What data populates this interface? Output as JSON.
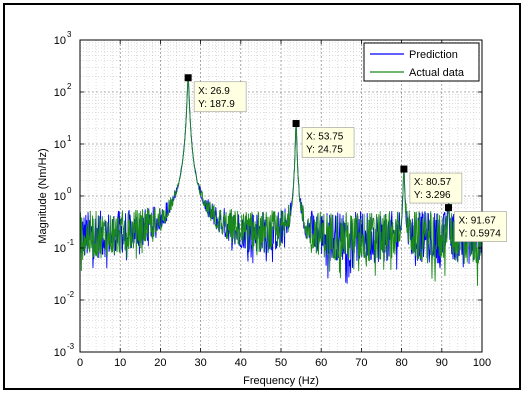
{
  "chart_data": {
    "type": "line",
    "title": "",
    "xlabel": "Frequency (Hz)",
    "ylabel": "Magnitude (Nm/Hz)",
    "xlim": [
      0,
      100
    ],
    "ylim": [
      0.001,
      1000
    ],
    "yscale": "log",
    "grid": true,
    "legend_position": "top-right",
    "x_ticks": [
      "0",
      "10",
      "20",
      "30",
      "40",
      "50",
      "60",
      "70",
      "80",
      "90",
      "100"
    ],
    "y_tick_base": "10",
    "y_tick_exponents": [
      "-3",
      "-2",
      "-1",
      "0",
      "1",
      "2",
      "3"
    ],
    "series": [
      {
        "name": "Prediction",
        "color": "#0000ff"
      },
      {
        "name": "Actual data",
        "color": "#1a8a1a"
      }
    ],
    "peaks": [
      {
        "x": 26.9,
        "y": 187.9
      },
      {
        "x": 53.75,
        "y": 24.75
      },
      {
        "x": 80.57,
        "y": 3.296
      },
      {
        "x": 91.67,
        "y": 0.5974
      }
    ],
    "datatips": [
      {
        "x_text": "X: 26.9",
        "y_text": "Y: 187.9"
      },
      {
        "x_text": "X: 53.75",
        "y_text": "Y: 24.75"
      },
      {
        "x_text": "X: 80.57",
        "y_text": "Y: 3.296"
      },
      {
        "x_text": "X: 91.67",
        "y_text": "Y: 0.5974"
      }
    ],
    "noise_floor": 0.15
  }
}
